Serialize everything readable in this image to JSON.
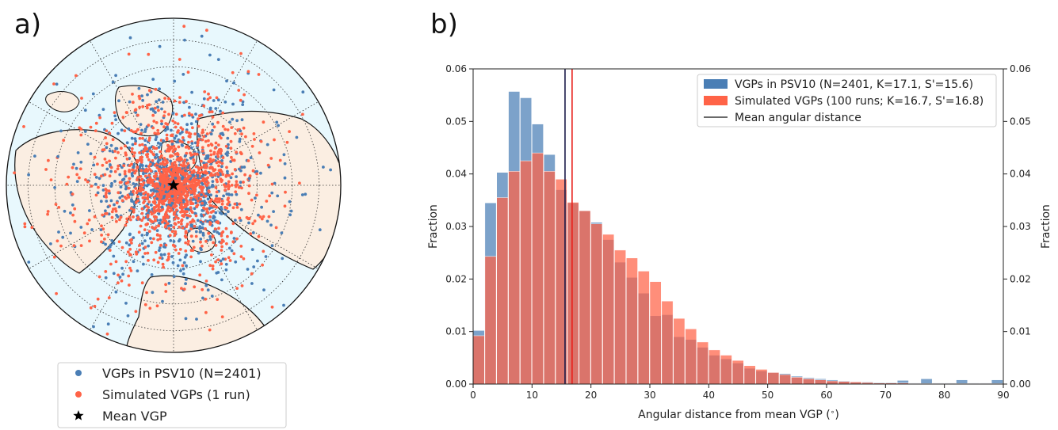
{
  "panels": {
    "a_label": "a)",
    "b_label": "b)"
  },
  "colors": {
    "psv10": "#4a7eb5",
    "simulated": "#ff6347",
    "ocean": "#e8f8fd",
    "land": "#fbeee2",
    "mean_line_psv": "#1b1b4a",
    "mean_line_sim": "#e8201a"
  },
  "map_legend": {
    "items": [
      {
        "label": "VGPs in PSV10 (N=2401)",
        "marker": "circle",
        "color": "#4a7eb5"
      },
      {
        "label": "Simulated VGPs (1 run)",
        "marker": "circle",
        "color": "#ff6347"
      },
      {
        "label": "Mean VGP",
        "marker": "star",
        "color": "#000000"
      }
    ]
  },
  "chart_data": {
    "type": "bar",
    "title": "",
    "xlabel": "Angular distance from mean VGP ($^\\circ$)",
    "ylabel": "Fraction",
    "ylabel_right": "Fraction",
    "xlim": [
      0,
      90
    ],
    "ylim": [
      0,
      0.06
    ],
    "xticks": [
      0,
      10,
      20,
      30,
      40,
      50,
      60,
      70,
      80,
      90
    ],
    "yticks": [
      "0.00",
      "0.01",
      "0.02",
      "0.03",
      "0.04",
      "0.05",
      "0.06"
    ],
    "bin_width": 2,
    "bin_start": 0,
    "legend_position": "top-right",
    "legend": [
      "VGPs in PSV10 (N=2401, K=17.1, S'=15.6)",
      "Simulated VGPs (100 runs; K=16.7, S'=16.8)",
      "Mean angular distance"
    ],
    "series": [
      {
        "name": "VGPs in PSV10 (N=2401, K=17.1, S'=15.6)",
        "color": "#4a7eb5",
        "values": [
          0.0102,
          0.0345,
          0.0403,
          0.0557,
          0.0545,
          0.0495,
          0.0437,
          0.037,
          0.0345,
          0.033,
          0.0308,
          0.0275,
          0.0232,
          0.0203,
          0.0173,
          0.013,
          0.0132,
          0.009,
          0.0085,
          0.007,
          0.0055,
          0.0048,
          0.004,
          0.003,
          0.0025,
          0.0022,
          0.002,
          0.0015,
          0.0012,
          0.001,
          0.0008,
          0.0006,
          0.0004,
          0.0004,
          0.0003,
          0.0003,
          0.0007,
          0.0002,
          0.001,
          0.0002,
          0.0002,
          0.0008,
          0.0002,
          0.0002,
          0.0008
        ]
      },
      {
        "name": "Simulated VGPs (100 runs; K=16.7, S'=16.8)",
        "color": "#ff6347",
        "values": [
          0.0092,
          0.0243,
          0.0355,
          0.0405,
          0.0425,
          0.044,
          0.0405,
          0.039,
          0.0346,
          0.033,
          0.0305,
          0.0285,
          0.0255,
          0.024,
          0.0215,
          0.0195,
          0.0158,
          0.0125,
          0.0105,
          0.008,
          0.0065,
          0.0055,
          0.0045,
          0.0035,
          0.0028,
          0.0022,
          0.0018,
          0.0013,
          0.001,
          0.0008,
          0.0006,
          0.0005,
          0.0004,
          0.0003,
          0.0002,
          0.0002,
          0.0002,
          0.0001,
          0.0001,
          0.0001,
          0.0001,
          0.0001,
          0.0001,
          0.0001,
          0.0001
        ]
      }
    ],
    "mean_lines": [
      {
        "name": "PSV10 mean angular distance",
        "x": 15.6,
        "color": "#1b1b4a"
      },
      {
        "name": "Simulated mean angular distance",
        "x": 16.8,
        "color": "#e8201a"
      }
    ]
  }
}
